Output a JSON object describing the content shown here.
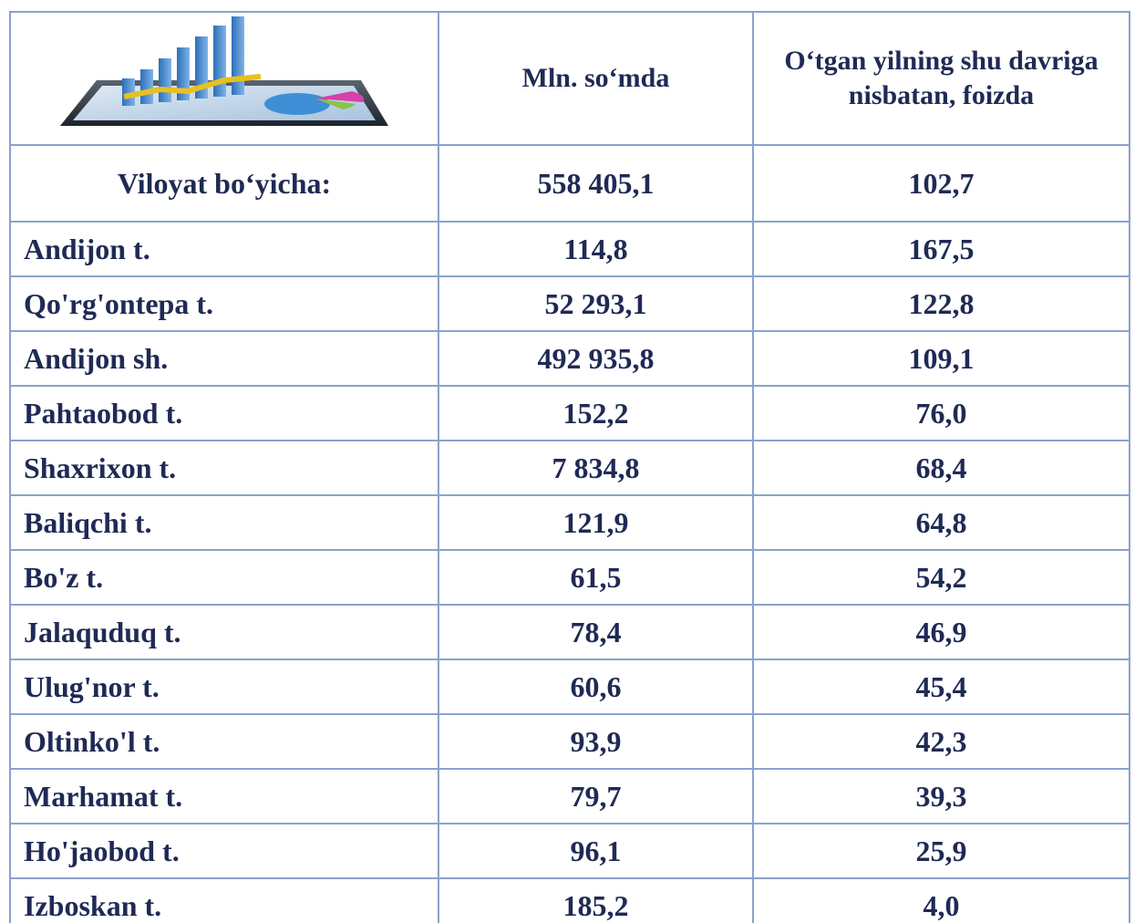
{
  "table": {
    "header": [
      "Mln. so‘mda",
      "O‘tgan yilning shu davriga nisbatan, foizda"
    ],
    "total": [
      "Viloyat bo‘yicha:",
      "558 405,1",
      "102,7"
    ],
    "rows": [
      [
        "Andijon t.",
        "114,8",
        "167,5"
      ],
      [
        "Qo'rg'ontepa t.",
        "52 293,1",
        "122,8"
      ],
      [
        "Andijon sh.",
        "492 935,8",
        "109,1"
      ],
      [
        "Pahtaobod t.",
        "152,2",
        "76,0"
      ],
      [
        "Shaxrixon t.",
        "7 834,8",
        "68,4"
      ],
      [
        "Baliqchi t.",
        "121,9",
        "64,8"
      ],
      [
        "Bo'z t.",
        "61,5",
        "54,2"
      ],
      [
        "Jalaquduq t.",
        "78,4",
        "46,9"
      ],
      [
        "Ulug'nor t.",
        "60,6",
        "45,4"
      ],
      [
        "Oltinko'l t.",
        "93,9",
        "42,3"
      ],
      [
        "Marhamat t.",
        "79,7",
        "39,3"
      ],
      [
        "Ho'jaobod t.",
        "96,1",
        "25,9"
      ],
      [
        "Izboskan t.",
        "185,2",
        "4,0"
      ]
    ]
  }
}
